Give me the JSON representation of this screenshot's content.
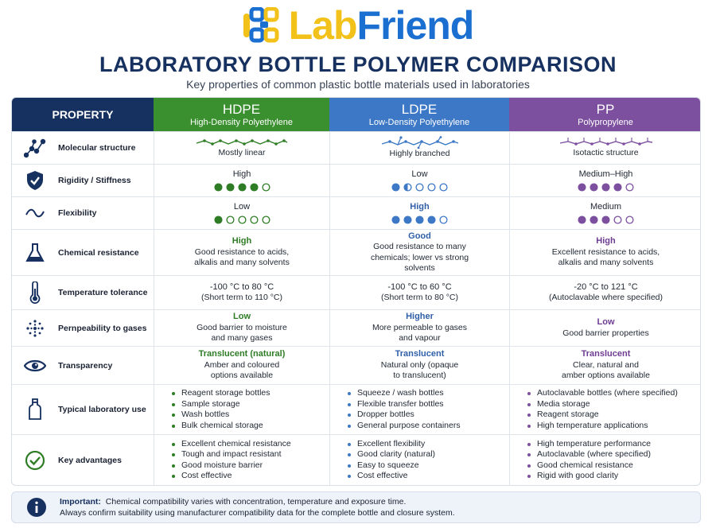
{
  "brand": {
    "lab": "Lab",
    "friend": "Friend"
  },
  "title": "LABORATORY BOTTLE POLYMER COMPARISON",
  "subtitle": "Key properties of common plastic bottle materials used in laboratories",
  "colors": {
    "navy": "#16305f",
    "hdpe": "#3a8f2e",
    "ldpe": "#3d78c6",
    "pp": "#7c4f9f",
    "logo_yellow": "#f2c21b",
    "logo_blue": "#1b6fd1"
  },
  "header": {
    "property": "PROPERTY",
    "hdpe": {
      "name": "HDPE",
      "full": "High-Density Polyethylene"
    },
    "ldpe": {
      "name": "LDPE",
      "full": "Low-Density Polyethylene"
    },
    "pp": {
      "name": "PP",
      "full": "Polypropylene"
    }
  },
  "rows": {
    "molecular": {
      "label": "Molecular structure",
      "icon": "molecule-icon",
      "hdpe": "Mostly linear",
      "ldpe": "Highly branched",
      "pp": "Isotactic structure"
    },
    "rigidity": {
      "label": "Rigidity / Stiffness",
      "icon": "shield-icon",
      "hdpe": "High",
      "ldpe": "Low",
      "pp": "Medium–High",
      "hdpe_level": 4,
      "ldpe_level": 1.5,
      "pp_level": 4,
      "max_level": 5
    },
    "flexibility": {
      "label": "Flexibility",
      "icon": "wave-icon",
      "hdpe": "Low",
      "ldpe": "High",
      "pp": "Medium",
      "hdpe_level": 1,
      "ldpe_level": 4,
      "pp_level": 3,
      "max_level": 5
    },
    "chemical": {
      "label": "Chemical resistance",
      "icon": "flask-icon",
      "hdpe_rating": "High",
      "hdpe_lines": [
        "Good resistance to acids,",
        "alkalis and many solvents"
      ],
      "ldpe_rating": "Good",
      "ldpe_lines": [
        "Good resistance to many",
        "chemicals; lower vs strong",
        "solvents"
      ],
      "pp_rating": "High",
      "pp_lines": [
        "Excellent resistance to acids,",
        "alkalis and many solvents"
      ]
    },
    "temperature": {
      "label": "Temperature tolerance",
      "icon": "thermometer-icon",
      "hdpe_lines": [
        "-100 °C to 80 °C",
        "(Short term to 110 °C)"
      ],
      "ldpe_lines": [
        "-100 °C to 60 °C",
        "(Short term to 80 °C)"
      ],
      "pp_lines": [
        "-20 °C to 121 °C",
        "(Autoclavable where specified)"
      ]
    },
    "permeability": {
      "label": "Pernpeability to gases",
      "icon": "gas-particles-icon",
      "hdpe_rating": "Low",
      "hdpe_lines": [
        "Good barrier to moisture",
        "and many gases"
      ],
      "ldpe_rating": "Higher",
      "ldpe_lines": [
        "More permeable to gases",
        "and vapour"
      ],
      "pp_rating": "Low",
      "pp_lines": [
        "Good barrier properties"
      ]
    },
    "transparency": {
      "label": "Transparency",
      "icon": "eye-icon",
      "hdpe_rating": "Translucent (natural)",
      "hdpe_lines": [
        "Amber and coloured",
        "options available"
      ],
      "ldpe_rating": "Translucent",
      "ldpe_lines": [
        "Natural only (opaque",
        "to translucent)"
      ],
      "pp_rating": "Translucent",
      "pp_lines": [
        "Clear, natural and",
        "amber options available"
      ]
    },
    "typical_use": {
      "label": "Typical laboratory use",
      "icon": "bottle-icon",
      "hdpe": [
        "Reagent storage bottles",
        "Sample storage",
        "Wash bottles",
        "Bulk chemical storage"
      ],
      "ldpe": [
        "Squeeze / wash bottles",
        "Flexible transfer bottles",
        "Dropper bottles",
        "General purpose containers"
      ],
      "pp": [
        "Autoclavable bottles (where specified)",
        "Media storage",
        "Reagent storage",
        "High temperature applications"
      ]
    },
    "advantages": {
      "label": "Key advantages",
      "icon": "check-circle-icon",
      "hdpe": [
        "Excellent chemical resistance",
        "Tough and impact resistant",
        "Good moisture barrier",
        "Cost effective"
      ],
      "ldpe": [
        "Excellent flexibility",
        "Good clarity (natural)",
        "Easy to squeeze",
        "Cost effective"
      ],
      "pp": [
        "High temperature performance",
        "Autoclavable (where specified)",
        "Good chemical resistance",
        "Rigid with good clarity"
      ]
    }
  },
  "note": {
    "label": "Important:",
    "line1": "Chemical compatibility varies with concentration, temperature and exposure time.",
    "line2": "Always confirm suitability using manufacturer compatibility data for the complete bottle and closure system."
  }
}
